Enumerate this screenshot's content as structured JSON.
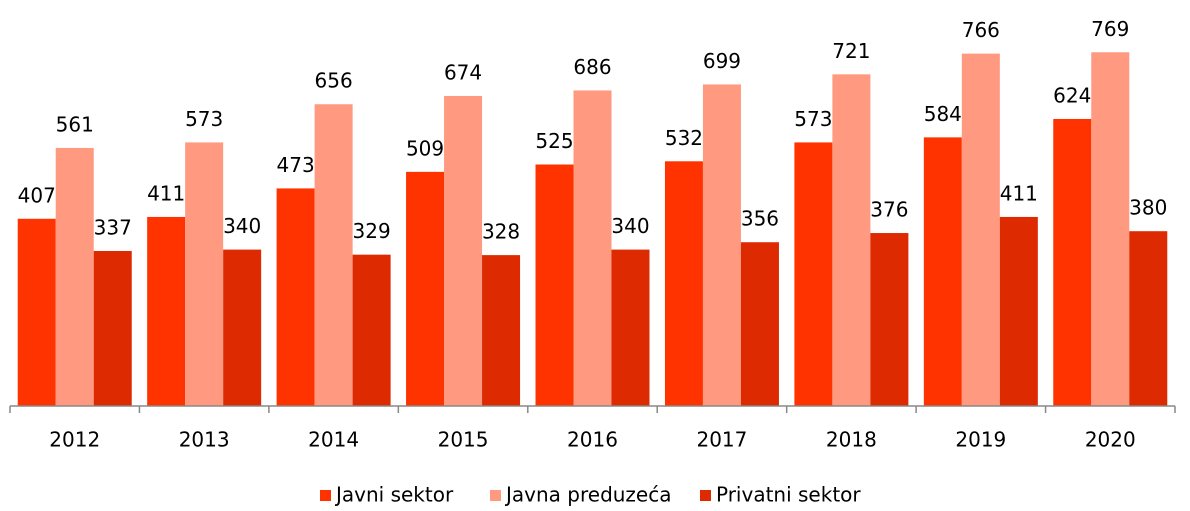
{
  "chart_data": {
    "type": "bar",
    "categories": [
      "2012",
      "2013",
      "2014",
      "2015",
      "2016",
      "2017",
      "2018",
      "2019",
      "2020"
    ],
    "series": [
      {
        "name": "Javni sektor",
        "color": "#ff3300",
        "values": [
          407,
          411,
          473,
          509,
          525,
          532,
          573,
          584,
          624
        ]
      },
      {
        "name": "Javna preduzeća",
        "color": "#ff9980",
        "values": [
          561,
          573,
          656,
          674,
          686,
          699,
          721,
          766,
          769
        ]
      },
      {
        "name": "Privatni sektor",
        "color": "#dd2a00",
        "values": [
          337,
          340,
          329,
          328,
          340,
          356,
          376,
          411,
          380
        ]
      }
    ],
    "ylim": [
      0,
      800
    ],
    "legend": "bottom"
  }
}
